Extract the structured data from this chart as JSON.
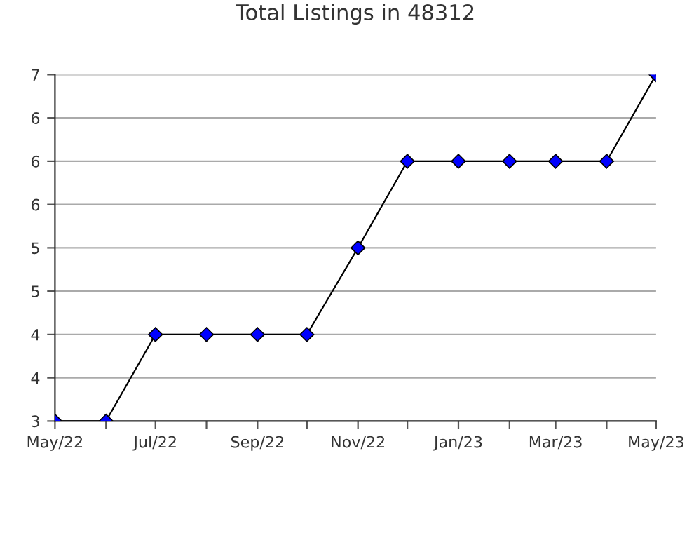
{
  "chart_data": {
    "type": "line",
    "title": "Total Listings in 48312",
    "x": [
      "2022-05",
      "2022-06",
      "2022-07",
      "2022-08",
      "2022-09",
      "2022-10",
      "2022-11",
      "2022-12",
      "2023-01",
      "2023-02",
      "2023-03",
      "2023-04",
      "2023-05"
    ],
    "series": [
      {
        "color": "#0000ff",
        "values": [
          3,
          3,
          4,
          4,
          4,
          4,
          5,
          6,
          6,
          6,
          6,
          6,
          7
        ]
      }
    ],
    "xlim": [
      "2022-05",
      "2023-05"
    ],
    "xticks": [
      {
        "value": "2022-05",
        "label": "May/22"
      },
      {
        "value": "2022-06",
        "label": null
      },
      {
        "value": "2022-07",
        "label": "Jul/22"
      },
      {
        "value": "2022-08",
        "label": null
      },
      {
        "value": "2022-09",
        "label": "Sep/22"
      },
      {
        "value": "2022-10",
        "label": null
      },
      {
        "value": "2022-11",
        "label": "Nov/22"
      },
      {
        "value": "2022-12",
        "label": null
      },
      {
        "value": "2023-01",
        "label": "Jan/23"
      },
      {
        "value": "2023-02",
        "label": null
      },
      {
        "value": "2023-03",
        "label": "Mar/23"
      },
      {
        "value": "2023-04",
        "label": null
      },
      {
        "value": "2023-05",
        "label": "May/23"
      }
    ],
    "ylim": [
      3,
      7
    ],
    "yticks": [
      3,
      {
        "value": 3.5,
        "label": "4"
      },
      4,
      {
        "value": 4.5,
        "label": "5"
      },
      5,
      {
        "value": 5.5,
        "label": "6"
      },
      6,
      {
        "value": 6.5,
        "label": "6"
      },
      7
    ],
    "grid": "y",
    "marker": "diamond",
    "line_style": "solid",
    "legend": false
  }
}
